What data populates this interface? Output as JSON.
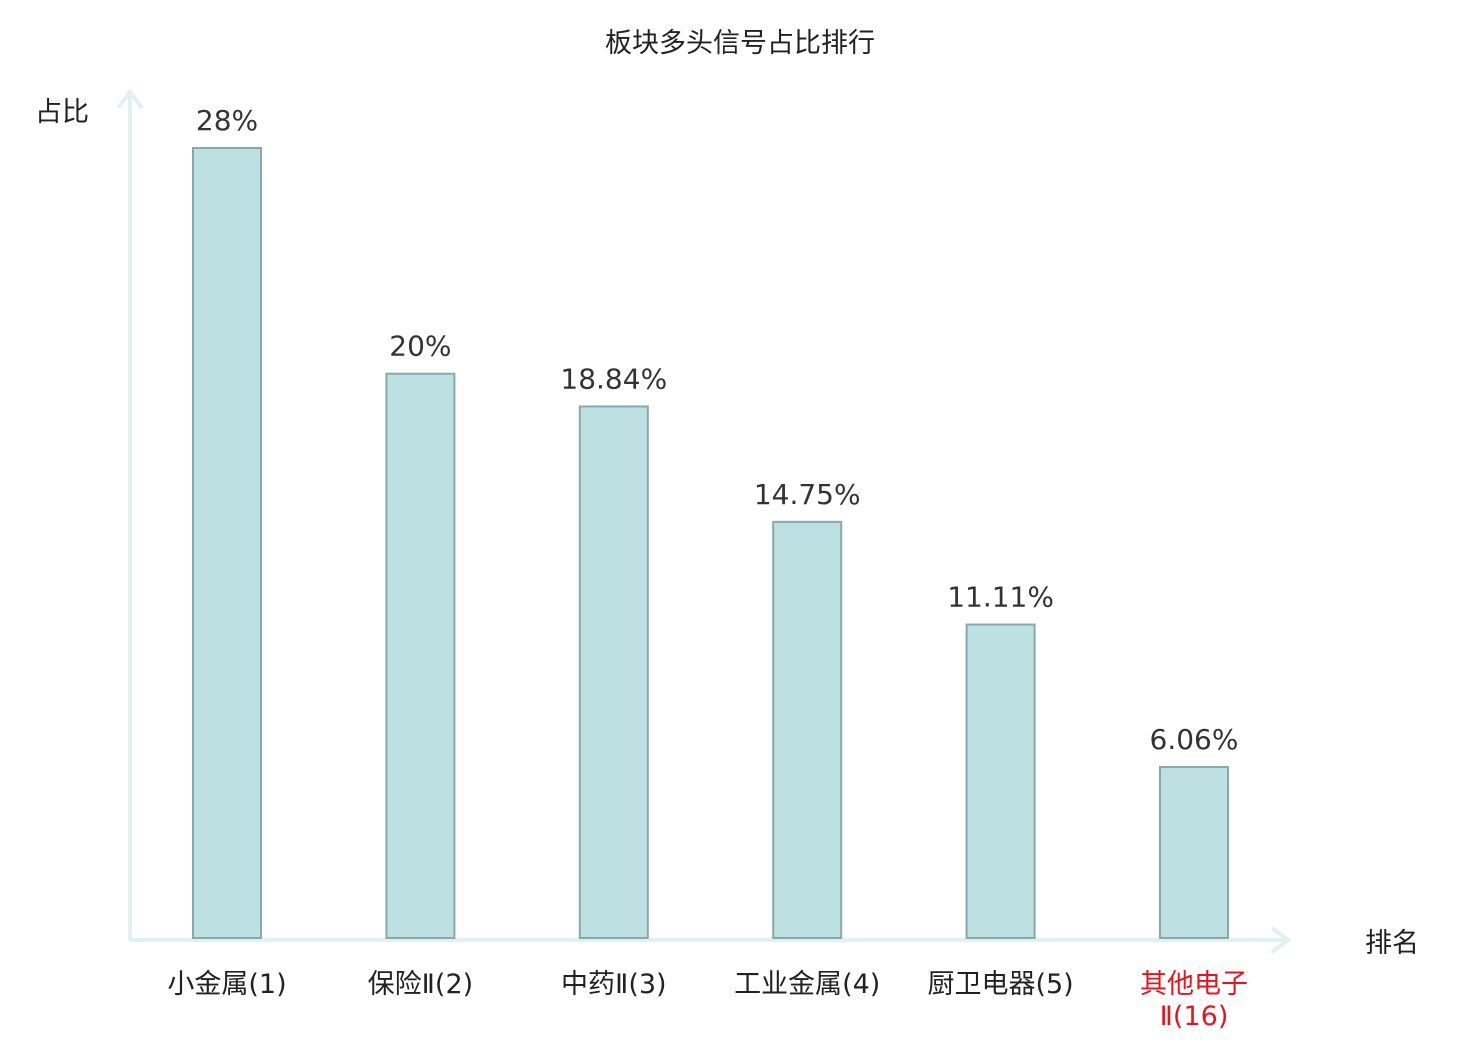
{
  "chart_data": {
    "type": "bar",
    "title": "板块多头信号占比排行",
    "ylabel": "占比",
    "xlabel": "排名",
    "ylim": [
      0,
      30
    ],
    "grid": false,
    "categories": [
      {
        "name": "小金属",
        "rank": "(1)",
        "highlight": false
      },
      {
        "name": "保险Ⅱ",
        "rank": "(2)",
        "highlight": false
      },
      {
        "name": "中药Ⅱ",
        "rank": "(3)",
        "highlight": false
      },
      {
        "name": "工业金属",
        "rank": "(4)",
        "highlight": false
      },
      {
        "name": "厨卫电器",
        "rank": "(5)",
        "highlight": false
      },
      {
        "name": "其他电子",
        "rank": "Ⅱ(16)",
        "highlight": true
      }
    ],
    "values": [
      28,
      20,
      18.84,
      14.75,
      11.11,
      6.06
    ],
    "value_labels": [
      "28%",
      "20%",
      "18.84%",
      "14.75%",
      "11.11%",
      "6.06%"
    ],
    "colors": {
      "bar_fill": "#bde0e2",
      "bar_stroke": "#88a9aa",
      "axis": "#e0f2ef",
      "highlight": "#e8141c",
      "text": "#222222"
    }
  }
}
